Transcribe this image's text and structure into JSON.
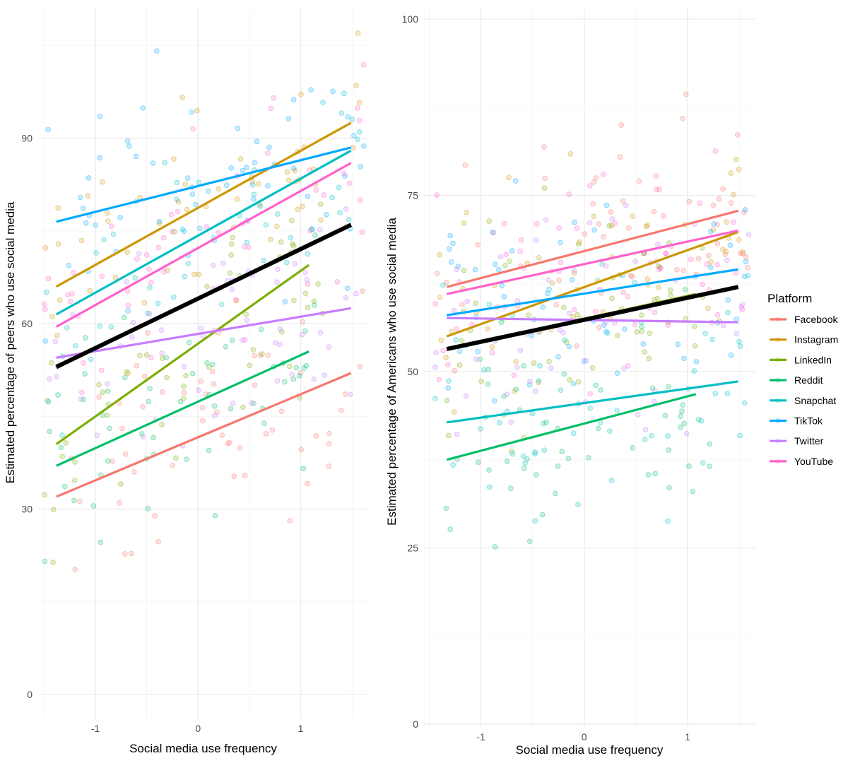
{
  "legend": {
    "title": "Platform",
    "entries": [
      {
        "name": "Facebook",
        "color": "#F8766D"
      },
      {
        "name": "Instagram",
        "color": "#CD9600"
      },
      {
        "name": "LinkedIn",
        "color": "#7CAE00"
      },
      {
        "name": "Reddit",
        "color": "#00BE67"
      },
      {
        "name": "Snapchat",
        "color": "#00BFC4"
      },
      {
        "name": "TikTok",
        "color": "#00A9FF"
      },
      {
        "name": "Twitter",
        "color": "#C77CFF"
      },
      {
        "name": "YouTube",
        "color": "#FF61CC"
      }
    ]
  },
  "chart_data": [
    {
      "type": "scatter",
      "xlabel": "Social media use frequency",
      "ylabel": "Estimated percentage of peers who use social media",
      "xlim": [
        -1.55,
        1.65
      ],
      "ylim": [
        -4,
        111
      ],
      "x_ticks": [
        -1,
        0,
        1
      ],
      "x_tick_labels": [
        "-1",
        "0",
        "1"
      ],
      "y_ticks": [
        0,
        30,
        60,
        90
      ],
      "y_tick_labels": [
        "0",
        "30",
        "60",
        "90"
      ],
      "grid": true,
      "points": "jittered raw responses (alpha ~0.25) for each platform",
      "overall_fit": {
        "color": "#000000",
        "x": [
          -1.38,
          1.49
        ],
        "y": [
          53,
          76
        ]
      },
      "series": [
        {
          "name": "Facebook",
          "x": [
            -1.38,
            1.49
          ],
          "y": [
            32,
            52
          ]
        },
        {
          "name": "Instagram",
          "x": [
            -1.38,
            1.49
          ],
          "y": [
            66,
            92.5
          ]
        },
        {
          "name": "LinkedIn",
          "x": [
            -1.38,
            1.08
          ],
          "y": [
            40.5,
            69.5
          ]
        },
        {
          "name": "Reddit",
          "x": [
            -1.38,
            1.08
          ],
          "y": [
            37,
            55.5
          ]
        },
        {
          "name": "Snapchat",
          "x": [
            -1.38,
            1.49
          ],
          "y": [
            61.5,
            88
          ]
        },
        {
          "name": "TikTok",
          "x": [
            -1.38,
            1.49
          ],
          "y": [
            76.5,
            88.5
          ]
        },
        {
          "name": "Twitter",
          "x": [
            -1.38,
            1.49
          ],
          "y": [
            54.5,
            62.5
          ]
        },
        {
          "name": "YouTube",
          "x": [
            -1.38,
            1.49
          ],
          "y": [
            59.5,
            86
          ]
        }
      ]
    },
    {
      "type": "scatter",
      "xlabel": "Social media use frequency",
      "ylabel": "Estimated percentage of Americans who use social media",
      "xlim": [
        -1.55,
        1.65
      ],
      "ylim": [
        -0.5,
        101.5
      ],
      "x_ticks": [
        -1,
        0,
        1
      ],
      "x_tick_labels": [
        "-1",
        "0",
        "1"
      ],
      "y_ticks": [
        0,
        25,
        50,
        75,
        100
      ],
      "y_tick_labels": [
        "0",
        "25",
        "50",
        "75",
        "100"
      ],
      "grid": true,
      "points": "jittered raw responses (alpha ~0.25) for each platform",
      "overall_fit": {
        "color": "#000000",
        "x": [
          -1.33,
          1.49
        ],
        "y": [
          53.2,
          62
        ]
      },
      "series": [
        {
          "name": "Facebook",
          "x": [
            -1.33,
            1.49
          ],
          "y": [
            62,
            72.8
          ]
        },
        {
          "name": "Instagram",
          "x": [
            -1.33,
            1.49
          ],
          "y": [
            55,
            69.8
          ]
        },
        {
          "name": "LinkedIn",
          "x": [
            -1.33,
            1.08
          ],
          "y": [
            53.2,
            61
          ]
        },
        {
          "name": "Reddit",
          "x": [
            -1.33,
            1.08
          ],
          "y": [
            37.5,
            46.8
          ]
        },
        {
          "name": "Snapchat",
          "x": [
            -1.33,
            1.49
          ],
          "y": [
            42.8,
            48.6
          ]
        },
        {
          "name": "TikTok",
          "x": [
            -1.33,
            1.49
          ],
          "y": [
            58,
            64.5
          ]
        },
        {
          "name": "Twitter",
          "x": [
            -1.33,
            1.49
          ],
          "y": [
            57.6,
            57
          ]
        },
        {
          "name": "YouTube",
          "x": [
            -1.33,
            1.49
          ],
          "y": [
            61,
            70
          ]
        }
      ]
    }
  ]
}
